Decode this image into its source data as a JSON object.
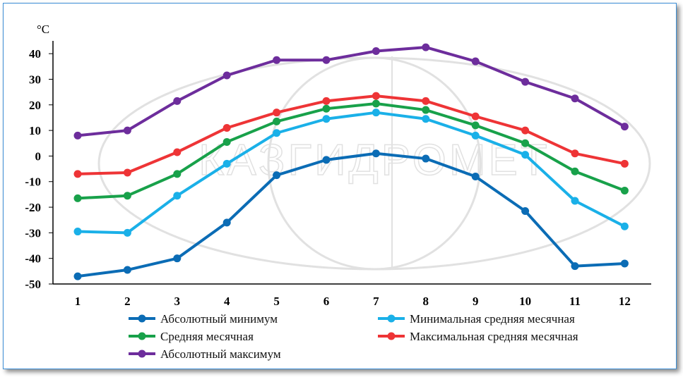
{
  "chart_data": {
    "type": "line",
    "unit_label": "°C",
    "categories": [
      "1",
      "2",
      "3",
      "4",
      "5",
      "6",
      "7",
      "8",
      "9",
      "10",
      "11",
      "12"
    ],
    "yticks": [
      40,
      30,
      20,
      10,
      0,
      -10,
      -20,
      -30,
      -40,
      -50
    ],
    "ytick_labels": [
      "40",
      "30",
      "20",
      "10",
      "0",
      "-10",
      "-20",
      "-30",
      "-40",
      "-50"
    ],
    "ylim": [
      -50,
      45
    ],
    "watermark": "КАЗГИДРОМЕТ",
    "series": [
      {
        "name": "Абсолютный минимум",
        "color": "#0b6cb5",
        "values": [
          -47,
          -44.5,
          -40,
          -26,
          -7.5,
          -1.5,
          1,
          -1,
          -8,
          -21.5,
          -43,
          -42
        ]
      },
      {
        "name": "Минимальная средняя месячная",
        "color": "#1ab0e8",
        "values": [
          -29.5,
          -30,
          -15.5,
          -3,
          9,
          14.5,
          17,
          14.5,
          8,
          0.5,
          -17.5,
          -27.5
        ]
      },
      {
        "name": "Средняя месячная",
        "color": "#18a14a",
        "values": [
          -16.5,
          -15.5,
          -7,
          5.5,
          13.5,
          18.5,
          20.5,
          18,
          12,
          5,
          -6,
          -13.5
        ]
      },
      {
        "name": "Максимальная средняя месячная",
        "color": "#ee3436",
        "values": [
          -7,
          -6.5,
          1.5,
          11,
          17,
          21.5,
          23.5,
          21.5,
          15.5,
          10,
          1,
          -3
        ]
      },
      {
        "name": "Абсолютный максимум",
        "color": "#6d2d9c",
        "values": [
          8,
          10,
          21.5,
          31.5,
          37.5,
          37.5,
          41,
          42.5,
          37,
          29,
          22.5,
          11.5
        ]
      }
    ]
  }
}
